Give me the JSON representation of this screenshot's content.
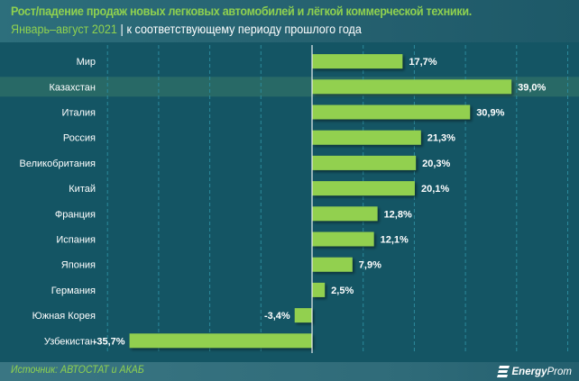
{
  "header": {
    "title_line1": "Рост/падение продаж новых легковых автомобилей и лёгкой коммерческой техники.",
    "title_period": "Январь–август 2021",
    "title_separator": "|",
    "title_subtitle": "к соответствующему периоду прошлого года"
  },
  "footer": {
    "source": "Источник: АВТОСТАТ и АКАБ",
    "logo_bold": "Energy",
    "logo_regular": "Prom"
  },
  "colors": {
    "background": "#145564",
    "bar": "#92d050",
    "highlight_row": "#2a6b66",
    "title_accent": "#8fd14f",
    "label": "#ffffff",
    "gridline": "#2c8a9c"
  },
  "chart_data": {
    "type": "bar",
    "orientation": "horizontal",
    "title": "Рост/падение продаж новых легковых автомобилей и лёгкой коммерческой техники. Январь–август 2021 | к соответствующему периоду прошлого года",
    "xlabel": "",
    "ylabel": "",
    "unit": "%",
    "categories": [
      "Мир",
      "Казахстан",
      "Италия",
      "Россия",
      "Великобритания",
      "Китай",
      "Франция",
      "Испания",
      "Япония",
      "Германия",
      "Южная Корея",
      "Узбекистан"
    ],
    "values": [
      17.7,
      39.0,
      30.9,
      21.3,
      20.3,
      20.1,
      12.8,
      12.1,
      7.9,
      2.5,
      -3.4,
      -35.7
    ],
    "value_labels": [
      "17,7%",
      "39,0%",
      "30,9%",
      "21,3%",
      "20,3%",
      "20,1%",
      "12,8%",
      "12,1%",
      "7,9%",
      "2,5%",
      "-3,4%",
      "-35,7%"
    ],
    "highlighted_category": "Казахстан",
    "xlim": [
      -40,
      50
    ],
    "grid_step": 10,
    "grid": true,
    "legend": "none"
  }
}
